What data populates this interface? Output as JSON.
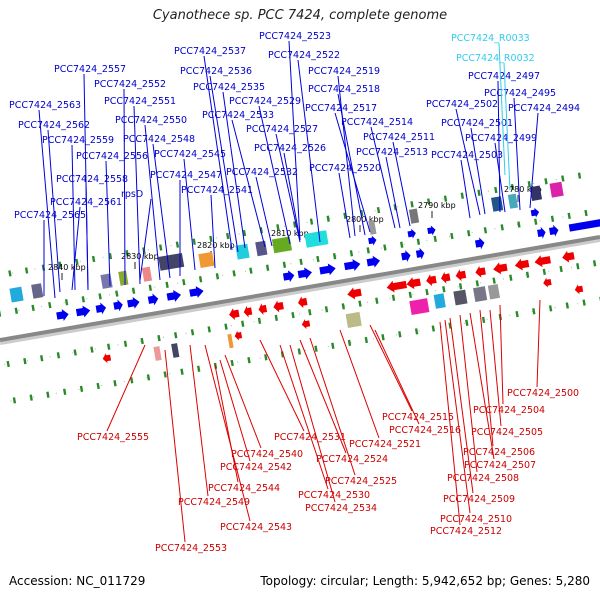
{
  "title": "Cyanothece sp. PCC 7424, complete genome",
  "footer": {
    "accession": "Accession: NC_011729",
    "summary": "Topology: circular; Length: 5,942,652 bp; Genes: 5,280"
  },
  "colors": {
    "forward": "#0000ee",
    "reverse": "#ee0000",
    "rna": "#33ccee",
    "backbone": "#888888"
  },
  "ticks": [
    "2780 kbp",
    "2790 kbp",
    "2800 kbp",
    "2810 kbp",
    "2820 kbp",
    "2830 kbp",
    "2840 kbp"
  ],
  "forward_labels": [
    "PCC7424_2523",
    "PCC7424_2537",
    "PCC7424_2522",
    "PCC7424_2557",
    "PCC7424_2536",
    "PCC7424_2519",
    "PCC7424_2552",
    "PCC7424_2535",
    "PCC7424_2518",
    "PCC7424_2563",
    "PCC7424_2551",
    "PCC7424_2529",
    "PCC7424_2517",
    "PCC7424_2533",
    "PCC7424_2562",
    "PCC7424_2550",
    "PCC7424_2514",
    "PCC7424_2527",
    "PCC7424_2559",
    "PCC7424_2548",
    "PCC7424_2511",
    "PCC7424_2526",
    "PCC7424_2556",
    "PCC7424_2545",
    "PCC7424_2513",
    "PCC7424_2520",
    "PCC7424_2532",
    "PCC7424_2558",
    "PCC7424_2547",
    "PCC7424_2541",
    "rpsD",
    "PCC7424_2561",
    "PCC7424_2565",
    "PCC7424_2497",
    "PCC7424_2495",
    "PCC7424_2502",
    "PCC7424_2494",
    "PCC7424_2501",
    "PCC7424_2499",
    "PCC7424_2503"
  ],
  "rna_labels": [
    "PCC7424_R0033",
    "PCC7424_R0032"
  ],
  "reverse_labels": [
    "PCC7424_2500",
    "PCC7424_2504",
    "PCC7424_2515",
    "PCC7424_2555",
    "PCC7424_2516",
    "PCC7424_2505",
    "PCC7424_2531",
    "PCC7424_2521",
    "PCC7424_2506",
    "PCC7424_2540",
    "PCC7424_2524",
    "PCC7424_2507",
    "PCC7424_2542",
    "PCC7424_2525",
    "PCC7424_2508",
    "PCC7424_2544",
    "PCC7424_2530",
    "PCC7424_2509",
    "PCC7424_2549",
    "PCC7424_2534",
    "PCC7424_2510",
    "PCC7424_2543",
    "PCC7424_2512",
    "PCC7424_2553"
  ]
}
